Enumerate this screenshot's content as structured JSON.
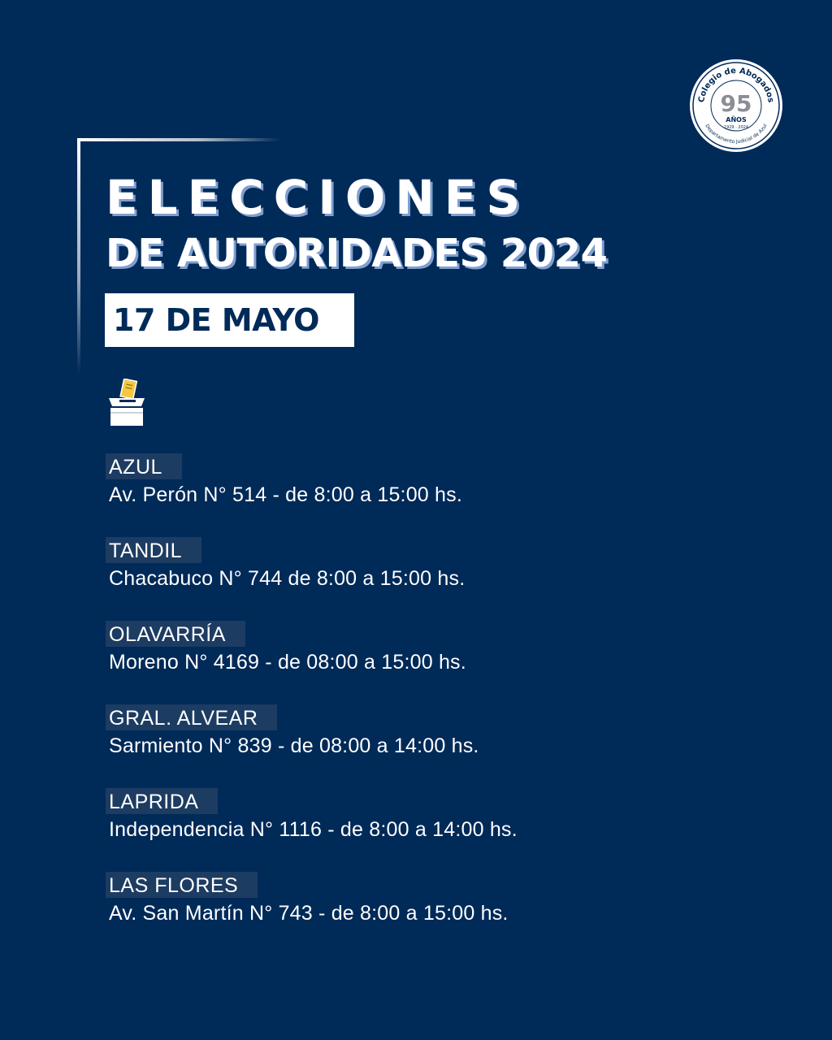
{
  "header": {
    "title_line1": "ELECCIONES",
    "title_line2": "DE AUTORIDADES 2024",
    "date": "17 DE MAYO"
  },
  "logo": {
    "ring_text": "Colegio de Abogados",
    "number": "95",
    "label": "AÑOS",
    "years": "1929 · 2024",
    "bottom_text": "Departamento Judicial de Azul"
  },
  "icons": {
    "ballot": "ballot-box-icon"
  },
  "locations": [
    {
      "city": "AZUL",
      "address": "Av. Perón N° 514 - de 8:00 a 15:00 hs."
    },
    {
      "city": "TANDIL",
      "address": "Chacabuco N° 744 de 8:00 a 15:00 hs."
    },
    {
      "city": "OLAVARRÍA",
      "address": "Moreno N° 4169 - de 08:00 a 15:00 hs."
    },
    {
      "city": "GRAL. ALVEAR",
      "address": "Sarmiento N° 839 - de 08:00 a 14:00 hs."
    },
    {
      "city": "LAPRIDA",
      "address": "Independencia N° 1116 - de 8:00 a 14:00 hs."
    },
    {
      "city": "LAS FLORES",
      "address": "Av. San Martín N° 743 - de 8:00 a 15:00 hs."
    }
  ],
  "colors": {
    "background": "#002a58",
    "highlight": "#1d3c62",
    "text": "#ffffff",
    "title_shadow": "#7f9fd0",
    "ballot_yellow": "#f5c842"
  }
}
